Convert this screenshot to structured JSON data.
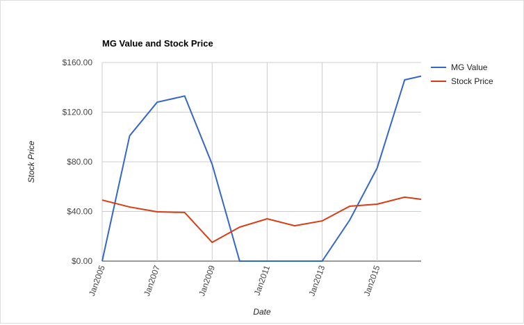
{
  "chart_data": {
    "type": "line",
    "title": "MG Value and Stock Price",
    "x_label": "Date",
    "y_label": "Stock Price",
    "x": [
      2005,
      2006,
      2007,
      2008,
      2009,
      2010,
      2011,
      2012,
      2013,
      2014,
      2015,
      2016,
      2016.6
    ],
    "series": [
      {
        "name": "MG Value",
        "color": "#3366cc",
        "values": [
          0,
          101,
          128,
          133,
          78,
          0,
          0,
          0,
          0,
          33,
          75,
          146,
          149
        ]
      },
      {
        "name": "Stock Price",
        "color": "#dc3912",
        "values": [
          49.2,
          43.6,
          39.7,
          39.2,
          15.1,
          27.4,
          34.1,
          28.5,
          32.4,
          44.2,
          45.9,
          51.5,
          49.8
        ]
      }
    ],
    "xlim": [
      2005,
      2016.6
    ],
    "xticks": [
      {
        "value": 2005,
        "label": "Jan2005"
      },
      {
        "value": 2007,
        "label": "Jan2007"
      },
      {
        "value": 2009,
        "label": "Jan2009"
      },
      {
        "value": 2011,
        "label": "Jan2011"
      },
      {
        "value": 2013,
        "label": "Jan2013"
      },
      {
        "value": 2015,
        "label": "Jan2015"
      }
    ],
    "ylim": [
      0,
      160
    ],
    "yticks": [
      {
        "value": 0,
        "label": "$0.00"
      },
      {
        "value": 40,
        "label": "$40.00"
      },
      {
        "value": 80,
        "label": "$80.00"
      },
      {
        "value": 120,
        "label": "$120.00"
      },
      {
        "value": 160,
        "label": "$160.00"
      }
    ],
    "grid": true,
    "legend": "right"
  }
}
